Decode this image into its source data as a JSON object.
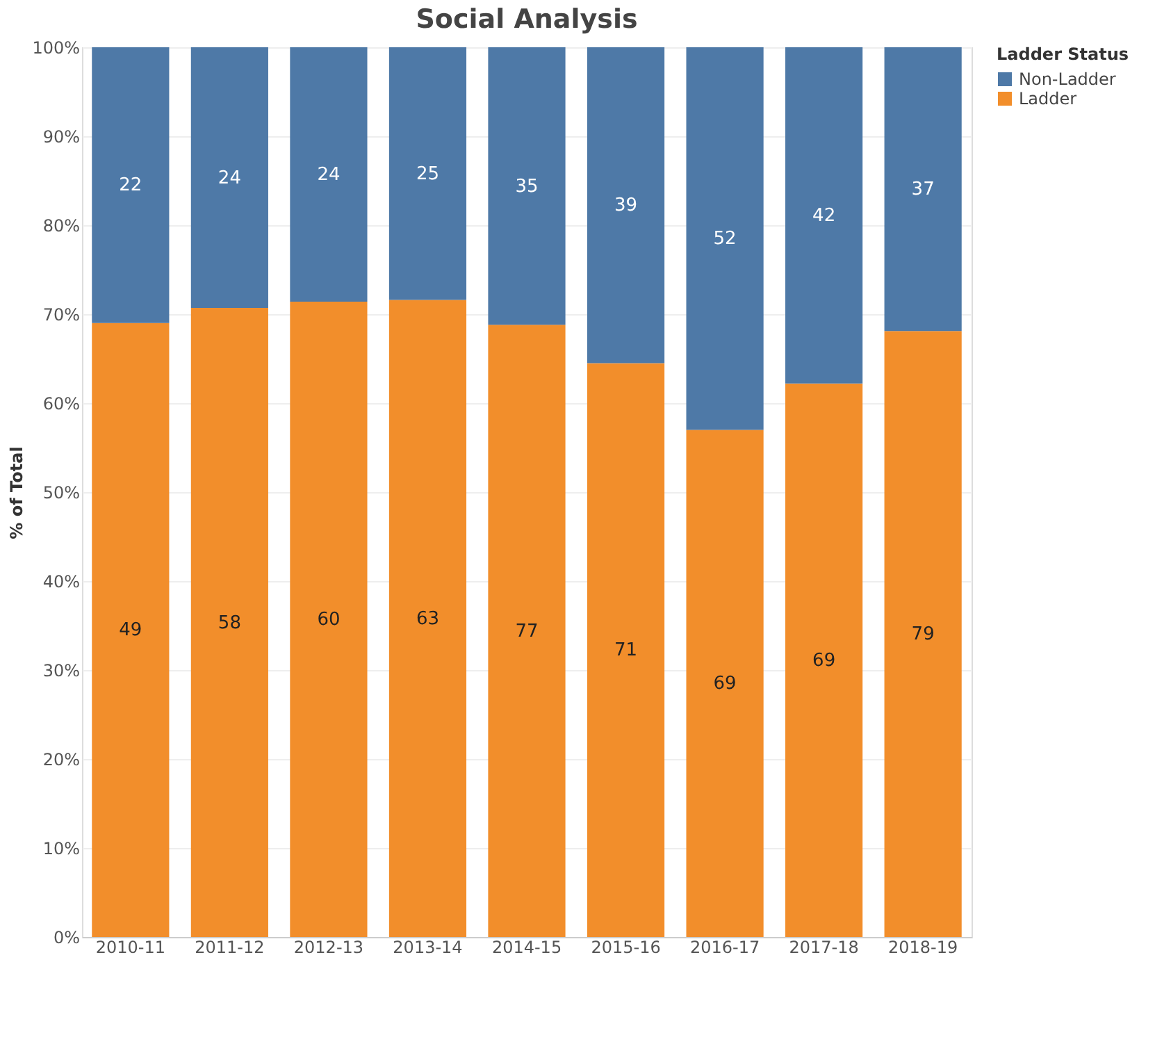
{
  "chart_data": {
    "type": "bar",
    "title": "Social Analysis",
    "ylabel": "% of Total",
    "legend_title": "Ladder Status",
    "categories": [
      "2010-11",
      "2011-12",
      "2012-13",
      "2013-14",
      "2014-15",
      "2015-16",
      "2016-17",
      "2017-18",
      "2018-19"
    ],
    "stacked": true,
    "series": [
      {
        "name": "Ladder",
        "color": "#f28e2b",
        "values": [
          69.0,
          70.7,
          71.4,
          71.6,
          68.8,
          64.5,
          57.0,
          62.2,
          68.1
        ]
      },
      {
        "name": "Non-Ladder",
        "color": "#4e79a7",
        "values": [
          31.0,
          29.3,
          28.6,
          28.4,
          31.2,
          35.5,
          43.0,
          37.8,
          31.9
        ]
      }
    ],
    "annotations": [
      "49",
      "58",
      "60",
      "63",
      "77",
      "71",
      "69",
      "69",
      "79",
      "22",
      "24",
      "24",
      "25",
      "35",
      "39",
      "52",
      "42",
      "37"
    ],
    "ylim": [
      0,
      100
    ],
    "yticks": [
      {
        "value": 0,
        "label": "0%"
      },
      {
        "value": 10,
        "label": "10%"
      },
      {
        "value": 20,
        "label": "20%"
      },
      {
        "value": 30,
        "label": "30%"
      },
      {
        "value": 40,
        "label": "40%"
      },
      {
        "value": 50,
        "label": "50%"
      },
      {
        "value": 60,
        "label": "60%"
      },
      {
        "value": 70,
        "label": "70%"
      },
      {
        "value": 80,
        "label": "80%"
      },
      {
        "value": 90,
        "label": "90%"
      },
      {
        "value": 100,
        "label": "100%"
      }
    ],
    "grid": "y",
    "legend": "top right"
  }
}
